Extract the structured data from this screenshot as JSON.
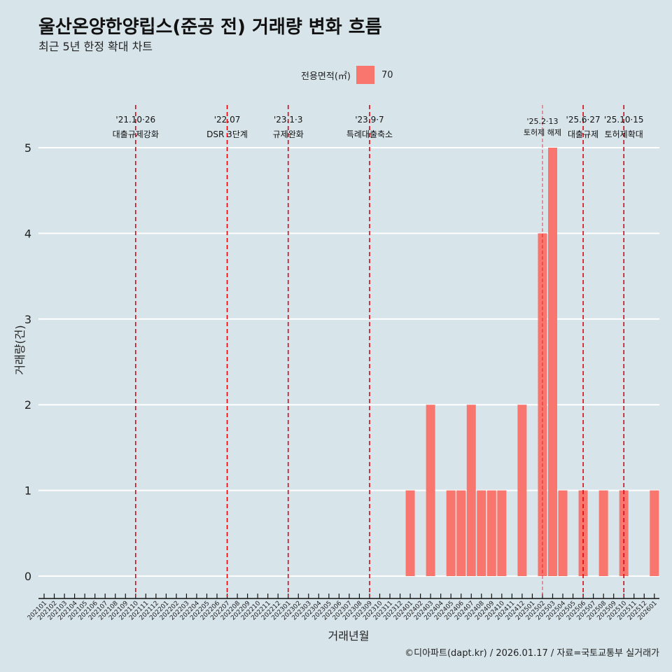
{
  "title": "울산온양한양립스(준공 전) 거래량 변화 흐름",
  "subtitle": "최근 5년 한정 확대 차트",
  "caption": "©디아파트(dapt.kr) / 2026.01.17 / 자료=국토교통부 실거래가",
  "colors": {
    "bar": "#F8766D",
    "vline": "#E8000B",
    "grid": "#ffffff"
  },
  "chart_data": {
    "type": "bar",
    "xlabel": "거래년월",
    "ylabel": "거래량(건)",
    "ylim": [
      0,
      5
    ],
    "yticks": [
      0,
      1,
      2,
      3,
      4,
      5
    ],
    "legend": {
      "title": "전용면적(㎡)",
      "entries": [
        "70"
      ],
      "placement": "top"
    },
    "categories": [
      "202101",
      "202102",
      "202103",
      "202104",
      "202105",
      "202106",
      "202107",
      "202108",
      "202109",
      "202110",
      "202111",
      "202112",
      "202201",
      "202202",
      "202203",
      "202204",
      "202205",
      "202206",
      "202207",
      "202208",
      "202209",
      "202210",
      "202211",
      "202212",
      "202301",
      "202302",
      "202303",
      "202304",
      "202305",
      "202306",
      "202307",
      "202308",
      "202309",
      "202310",
      "202311",
      "202312",
      "202401",
      "202402",
      "202403",
      "202404",
      "202405",
      "202406",
      "202407",
      "202408",
      "202409",
      "202410",
      "202411",
      "202412",
      "202501",
      "202502",
      "202503",
      "202504",
      "202505",
      "202506",
      "202507",
      "202508",
      "202509",
      "202510",
      "202511",
      "202512",
      "202601"
    ],
    "values": [
      0,
      0,
      0,
      0,
      0,
      0,
      0,
      0,
      0,
      0,
      0,
      0,
      0,
      0,
      0,
      0,
      0,
      0,
      0,
      0,
      0,
      0,
      0,
      0,
      0,
      0,
      0,
      0,
      0,
      0,
      0,
      0,
      0,
      0,
      0,
      0,
      1,
      0,
      2,
      0,
      1,
      1,
      2,
      1,
      1,
      1,
      0,
      2,
      0,
      4,
      5,
      1,
      0,
      1,
      0,
      1,
      0,
      1,
      0,
      0,
      1
    ],
    "annotations": [
      {
        "at": "202110",
        "date": "'21.10·26",
        "text": "대출규제강화",
        "style": "thick"
      },
      {
        "at": "202207",
        "date": "'22.07",
        "text": "DSR 3단계",
        "style": "thick"
      },
      {
        "at": "202301",
        "date": "'23.1·3",
        "text": "규제완화",
        "style": "thick"
      },
      {
        "at": "202309",
        "date": "'23.9·7",
        "text": "특례대출축소",
        "style": "thick"
      },
      {
        "at": "202502",
        "date": "'25.2·13",
        "text": "토허제 해제",
        "style": "thin"
      },
      {
        "at": "202506",
        "date": "'25.6·27",
        "text": "대출규제",
        "style": "thick"
      },
      {
        "at": "202510",
        "date": "'25.10·15",
        "text": "토허제확대",
        "style": "thick"
      }
    ]
  }
}
